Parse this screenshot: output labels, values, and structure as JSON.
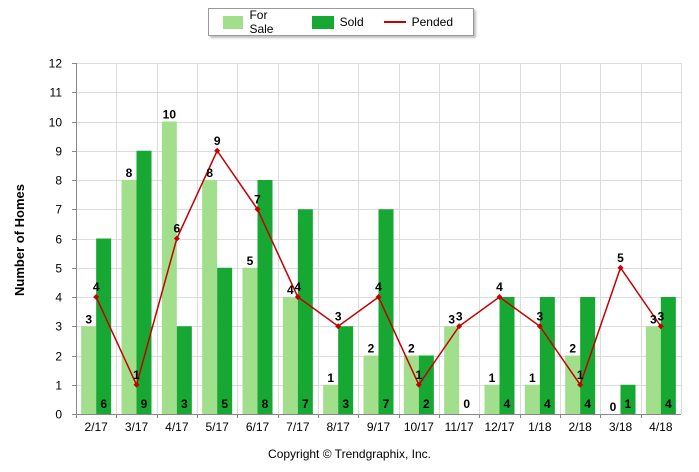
{
  "legend": {
    "items": [
      {
        "label": "For Sale",
        "color": "#a2df8c",
        "kind": "bar"
      },
      {
        "label": "Sold",
        "color": "#16a832",
        "kind": "bar"
      },
      {
        "label": "Pended",
        "color": "#c40000",
        "kind": "line"
      }
    ]
  },
  "footer": {
    "copyright": "Copyright © Trendgraphix, Inc."
  },
  "chart_data": {
    "type": "bar",
    "ylabel": "Number of Homes",
    "xlabel": "",
    "ylim": [
      0,
      12
    ],
    "yticks": [
      0,
      1,
      2,
      3,
      4,
      5,
      6,
      7,
      8,
      9,
      10,
      11,
      12
    ],
    "grid": true,
    "legend_position": "top-center",
    "categories": [
      "2/17",
      "3/17",
      "4/17",
      "5/17",
      "6/17",
      "7/17",
      "8/17",
      "9/17",
      "10/17",
      "11/17",
      "12/17",
      "1/18",
      "2/18",
      "3/18",
      "4/18"
    ],
    "series": [
      {
        "name": "For Sale",
        "kind": "bar",
        "color": "#a2df8c",
        "values": [
          3,
          8,
          10,
          8,
          5,
          4,
          1,
          2,
          2,
          3,
          1,
          1,
          2,
          0,
          3
        ]
      },
      {
        "name": "Sold",
        "kind": "bar",
        "color": "#16a832",
        "values": [
          6,
          9,
          3,
          5,
          8,
          7,
          3,
          7,
          2,
          0,
          4,
          4,
          4,
          1,
          4
        ]
      },
      {
        "name": "Pended",
        "kind": "line",
        "color": "#c40000",
        "values": [
          4,
          1,
          6,
          9,
          7,
          4,
          3,
          4,
          1,
          3,
          4,
          3,
          1,
          5,
          3
        ]
      }
    ]
  }
}
